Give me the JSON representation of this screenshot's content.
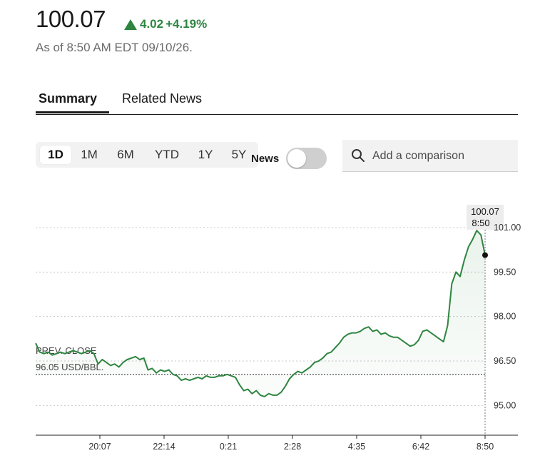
{
  "quote": {
    "price": "100.07",
    "change": "4.02",
    "change_percent": "+4.19%",
    "as_of": "As of 8:50 AM EDT 09/10/26.",
    "positive_color": "#2e8540"
  },
  "tabs": [
    {
      "label": "Summary",
      "active": true
    },
    {
      "label": "Related News",
      "active": false
    }
  ],
  "ranges": [
    {
      "label": "1D",
      "active": true
    },
    {
      "label": "1M",
      "active": false
    },
    {
      "label": "6M",
      "active": false
    },
    {
      "label": "YTD",
      "active": false
    },
    {
      "label": "1Y",
      "active": false
    },
    {
      "label": "5Y",
      "active": false
    }
  ],
  "news_toggle": {
    "label": "News",
    "on": false
  },
  "compare": {
    "placeholder": "Add a comparison"
  },
  "chart_data": {
    "type": "line",
    "ylim": [
      94.0,
      101.6
    ],
    "yticks": [
      95.0,
      96.5,
      98.0,
      99.5,
      101.0
    ],
    "ytick_labels": [
      "95.00",
      "96.50",
      "98.00",
      "99.50",
      "101.00"
    ],
    "xtick_labels": [
      "20:07",
      "22:14",
      "0:21",
      "2:28",
      "4:35",
      "6:42",
      "8:50"
    ],
    "prev_close": {
      "label_line1": "PREV. CLOSE",
      "label_line2": "96.05 USD/BBL.",
      "value": 96.05
    },
    "last": {
      "value_label": "100.07",
      "time_label": "8:50",
      "value": 100.07
    },
    "line_color": "#2e8540",
    "series": [
      {
        "values": [
          97.1,
          96.8,
          96.75,
          96.8,
          96.7,
          96.75,
          96.8,
          96.75,
          96.8,
          96.85,
          96.8,
          96.75,
          96.8,
          96.85,
          96.75,
          96.4,
          96.55,
          96.45,
          96.35,
          96.4,
          96.3,
          96.45,
          96.55,
          96.6,
          96.65,
          96.55,
          96.6,
          96.2,
          96.25,
          96.1,
          96.2,
          96.15,
          96.2,
          96.05,
          96.0,
          95.85,
          95.9,
          95.85,
          95.9,
          95.95,
          95.9,
          96.0,
          95.95,
          95.95,
          96.0,
          96.0,
          96.05,
          96.0,
          95.95,
          95.7,
          95.5,
          95.55,
          95.4,
          95.5,
          95.35,
          95.3,
          95.4,
          95.35,
          95.35,
          95.45,
          95.65,
          95.9,
          96.05,
          96.15,
          96.1,
          96.2,
          96.3,
          96.45,
          96.5,
          96.6,
          96.75,
          96.8,
          96.95,
          97.1,
          97.3,
          97.4,
          97.45,
          97.45,
          97.5,
          97.6,
          97.65,
          97.5,
          97.55,
          97.4,
          97.45,
          97.35,
          97.3,
          97.3,
          97.2,
          97.1,
          97.0,
          97.05,
          97.2,
          97.5,
          97.55,
          97.45,
          97.35,
          97.25,
          97.15,
          97.7,
          99.1,
          99.5,
          99.35,
          99.9,
          100.35,
          100.6,
          100.9,
          100.75,
          100.07
        ]
      }
    ]
  }
}
